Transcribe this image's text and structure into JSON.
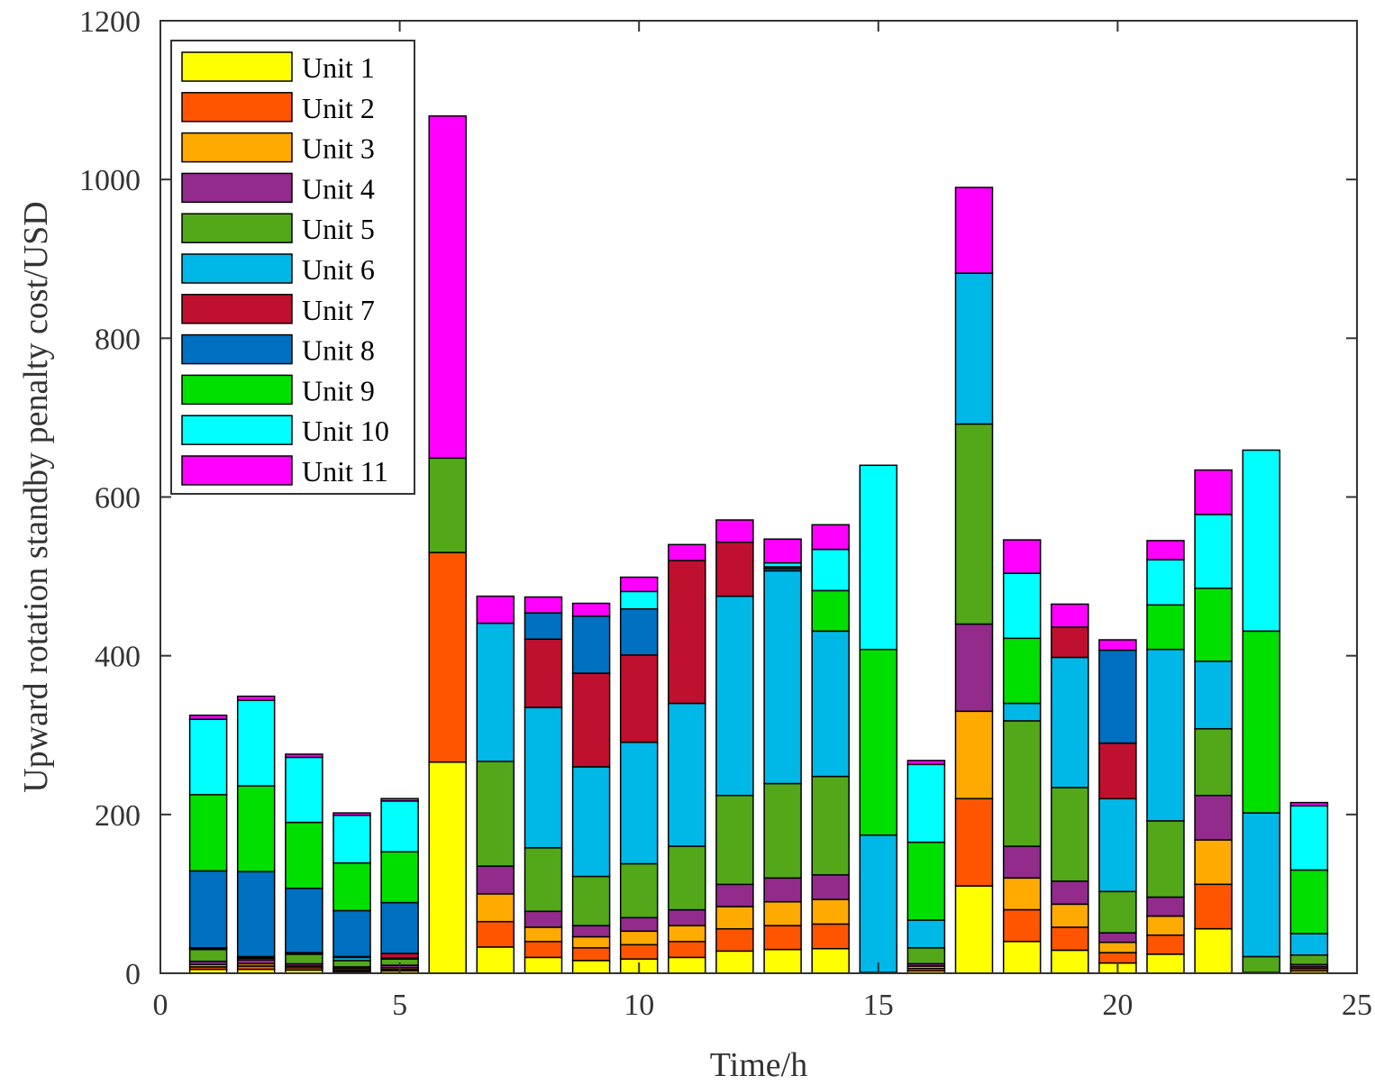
{
  "chart_data": {
    "type": "bar",
    "stacked": true,
    "title": "",
    "xlabel": "Time/h",
    "ylabel": "Upward rotation standby penalty cost/USD",
    "xlim": [
      0,
      25
    ],
    "ylim": [
      0,
      1200
    ],
    "xticks": [
      0,
      5,
      10,
      15,
      20,
      25
    ],
    "yticks": [
      0,
      200,
      400,
      600,
      800,
      1000,
      1200
    ],
    "legend_position": "top-left",
    "categories": [
      1,
      2,
      3,
      4,
      5,
      6,
      7,
      8,
      9,
      10,
      11,
      12,
      13,
      14,
      15,
      16,
      17,
      18,
      19,
      20,
      21,
      22,
      23,
      24
    ],
    "series": [
      {
        "name": "Unit 1",
        "color": "#FFFF00",
        "values": [
          5,
          5,
          4,
          2,
          3,
          266,
          33,
          20,
          16,
          18,
          20,
          28,
          30,
          31,
          1,
          3,
          110,
          40,
          29,
          13,
          24,
          56,
          1,
          3
        ]
      },
      {
        "name": "Unit 2",
        "color": "#FF5500",
        "values": [
          3,
          4,
          3,
          2,
          2,
          264,
          32,
          20,
          16,
          18,
          20,
          28,
          30,
          31,
          0,
          3,
          110,
          40,
          29,
          13,
          24,
          56,
          0,
          3
        ]
      },
      {
        "name": "Unit 3",
        "color": "#FFAA00",
        "values": [
          3,
          3,
          2,
          2,
          2,
          0,
          35,
          18,
          14,
          17,
          20,
          28,
          30,
          31,
          0,
          3,
          110,
          40,
          29,
          13,
          24,
          56,
          0,
          2
        ]
      },
      {
        "name": "Unit 4",
        "color": "#922B8C",
        "values": [
          4,
          5,
          3,
          2,
          3,
          0,
          35,
          20,
          14,
          17,
          20,
          28,
          30,
          31,
          0,
          3,
          110,
          40,
          29,
          12,
          24,
          56,
          0,
          3
        ]
      },
      {
        "name": "Unit 5",
        "color": "#52A818",
        "values": [
          15,
          2,
          12,
          8,
          8,
          119,
          132,
          80,
          62,
          68,
          80,
          112,
          119,
          124,
          0,
          20,
          252,
          158,
          118,
          52,
          96,
          84,
          20,
          12
        ]
      },
      {
        "name": "Unit 6",
        "color": "#00B8E8",
        "values": [
          1,
          1,
          1,
          4,
          1,
          0,
          174,
          177,
          138,
          153,
          180,
          251,
          268,
          183,
          173,
          35,
          190,
          22,
          164,
          117,
          216,
          85,
          181,
          27
        ]
      },
      {
        "name": "Unit 7",
        "color": "#C0102F",
        "values": [
          1,
          1,
          1,
          1,
          6,
          0,
          0,
          86,
          118,
          110,
          180,
          68,
          0,
          0,
          0,
          0,
          0,
          0,
          38,
          70,
          0,
          0,
          0,
          0
        ]
      },
      {
        "name": "Unit 8",
        "color": "#0070C0",
        "values": [
          97,
          107,
          81,
          58,
          64,
          0,
          0,
          33,
          72,
          58,
          0,
          0,
          3,
          0,
          0,
          0,
          0,
          0,
          0,
          117,
          0,
          0,
          0,
          0
        ]
      },
      {
        "name": "Unit 9",
        "color": "#00E000",
        "values": [
          96,
          108,
          83,
          60,
          64,
          0,
          0,
          0,
          0,
          0,
          0,
          0,
          2,
          51,
          234,
          98,
          0,
          82,
          0,
          0,
          56,
          92,
          229,
          80
        ]
      },
      {
        "name": "Unit 10",
        "color": "#00FFFF",
        "values": [
          95,
          108,
          82,
          60,
          64,
          0,
          0,
          0,
          0,
          22,
          0,
          0,
          5,
          52,
          232,
          98,
          0,
          82,
          0,
          0,
          57,
          93,
          228,
          81
        ]
      },
      {
        "name": "Unit 11",
        "color": "#FF00FF",
        "values": [
          5,
          5,
          4,
          3,
          3,
          431,
          34,
          20,
          16,
          18,
          20,
          28,
          30,
          31,
          0,
          5,
          108,
          42,
          29,
          13,
          24,
          56,
          0,
          4
        ]
      }
    ]
  }
}
